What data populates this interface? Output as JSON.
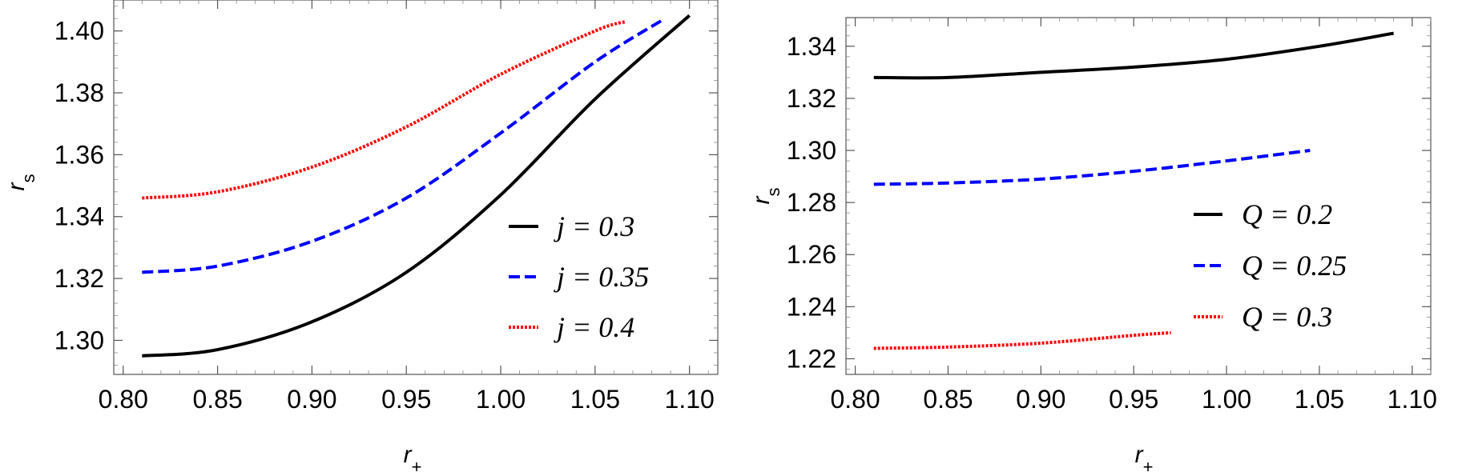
{
  "chart_data": [
    {
      "type": "line",
      "xlabel": "r+",
      "ylabel": "rs",
      "xlim": [
        0.795,
        1.115
      ],
      "ylim": [
        1.289,
        1.41
      ],
      "xticks": [
        "0.80",
        "0.85",
        "0.90",
        "0.95",
        "1.00",
        "1.05",
        "1.10"
      ],
      "yticks": [
        "1.30",
        "1.32",
        "1.34",
        "1.36",
        "1.38",
        "1.40"
      ],
      "legend_position": "bottom-right",
      "series": [
        {
          "name": "j = 0.3",
          "color": "#000000",
          "dash": "solid",
          "x": [
            0.81,
            0.85,
            0.9,
            0.95,
            1.0,
            1.05,
            1.1
          ],
          "y": [
            1.295,
            1.297,
            1.306,
            1.322,
            1.347,
            1.378,
            1.405
          ]
        },
        {
          "name": "j = 0.35",
          "color": "#0000ff",
          "dash": "dashed",
          "x": [
            0.81,
            0.85,
            0.9,
            0.95,
            1.0,
            1.05,
            1.087
          ],
          "y": [
            1.322,
            1.324,
            1.332,
            1.346,
            1.367,
            1.39,
            1.404
          ]
        },
        {
          "name": "j = 0.4",
          "color": "#ff0000",
          "dash": "dotted",
          "x": [
            0.81,
            0.85,
            0.9,
            0.95,
            1.0,
            1.05,
            1.066
          ],
          "y": [
            1.346,
            1.348,
            1.356,
            1.369,
            1.386,
            1.4,
            1.403
          ]
        }
      ]
    },
    {
      "type": "line",
      "xlabel": "r+",
      "ylabel": "rs",
      "xlim": [
        0.795,
        1.11
      ],
      "ylim": [
        1.214,
        1.351
      ],
      "xticks": [
        "0.80",
        "0.85",
        "0.90",
        "0.95",
        "1.00",
        "1.05",
        "1.10"
      ],
      "yticks": [
        "1.22",
        "1.24",
        "1.26",
        "1.28",
        "1.30",
        "1.32",
        "1.34"
      ],
      "legend_position": "right",
      "series": [
        {
          "name": "Q = 0.2",
          "color": "#000000",
          "dash": "solid",
          "x": [
            0.81,
            0.85,
            0.9,
            0.95,
            1.0,
            1.05,
            1.09
          ],
          "y": [
            1.328,
            1.328,
            1.33,
            1.332,
            1.335,
            1.34,
            1.345
          ]
        },
        {
          "name": "Q = 0.25",
          "color": "#0000ff",
          "dash": "dashed",
          "x": [
            0.81,
            0.85,
            0.9,
            0.95,
            1.0,
            1.045
          ],
          "y": [
            1.287,
            1.2875,
            1.289,
            1.292,
            1.296,
            1.3
          ]
        },
        {
          "name": "Q = 0.3",
          "color": "#ff0000",
          "dash": "dotted",
          "x": [
            0.81,
            0.85,
            0.9,
            0.95,
            0.97
          ],
          "y": [
            1.224,
            1.2245,
            1.226,
            1.229,
            1.23
          ]
        }
      ]
    }
  ]
}
